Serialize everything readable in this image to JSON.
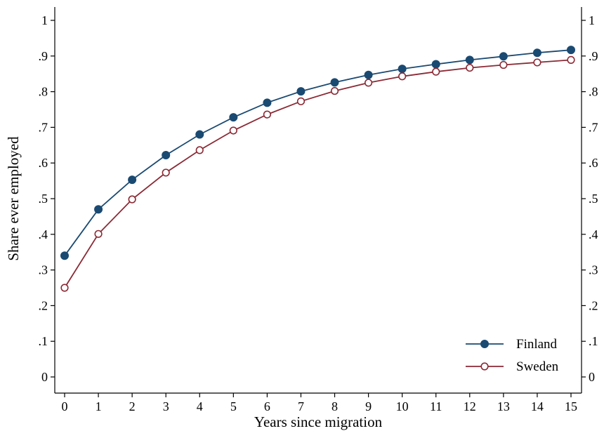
{
  "chart_data": {
    "type": "line",
    "title": "",
    "xlabel": "Years since migration",
    "ylabel": "Share ever employed",
    "x": [
      0,
      1,
      2,
      3,
      4,
      5,
      6,
      7,
      8,
      9,
      10,
      11,
      12,
      13,
      14,
      15
    ],
    "x_tick_labels": [
      "0",
      "1",
      "2",
      "3",
      "4",
      "5",
      "6",
      "7",
      "8",
      "9",
      "10",
      "11",
      "12",
      "13",
      "14",
      "15"
    ],
    "xlim": [
      0,
      15
    ],
    "ylim": [
      0,
      1
    ],
    "y_ticks": [
      0,
      0.1,
      0.2,
      0.3,
      0.4,
      0.5,
      0.6,
      0.7,
      0.8,
      0.9,
      1
    ],
    "y_tick_labels": [
      "0",
      ".1",
      ".2",
      ".3",
      ".4",
      ".5",
      ".6",
      ".7",
      ".8",
      ".9",
      "1"
    ],
    "right_axis_mirrors_left": true,
    "grid": false,
    "legend_position": "bottom-right",
    "series": [
      {
        "name": "Finland",
        "color": "#1a4a72",
        "marker": "filled-circle",
        "values": [
          0.34,
          0.47,
          0.553,
          0.622,
          0.68,
          0.728,
          0.769,
          0.801,
          0.826,
          0.847,
          0.864,
          0.877,
          0.889,
          0.899,
          0.909,
          0.917
        ]
      },
      {
        "name": "Sweden",
        "color": "#8b2a35",
        "marker": "hollow-circle",
        "values": [
          0.25,
          0.401,
          0.498,
          0.573,
          0.636,
          0.691,
          0.736,
          0.773,
          0.802,
          0.825,
          0.843,
          0.856,
          0.867,
          0.875,
          0.882,
          0.889
        ]
      }
    ]
  }
}
